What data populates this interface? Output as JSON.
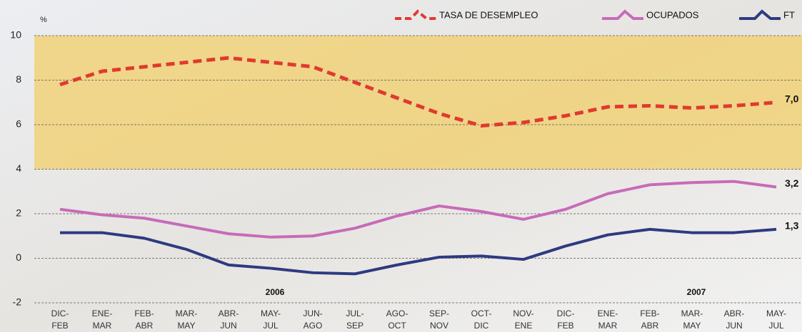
{
  "chart_data": {
    "type": "line",
    "y_label": "%",
    "categories": [
      "DIC-\nFEB",
      "ENE-\nMAR",
      "FEB-\nABR",
      "MAR-\nMAY",
      "ABR-\nJUN",
      "MAY-\nJUL",
      "JUN-\nAGO",
      "JUL-\nSEP",
      "AGO-\nOCT",
      "SEP-\nNOV",
      "OCT-\nDIC",
      "NOV-\nENE",
      "DIC-\nFEB",
      "ENE-\nMAR",
      "FEB-\nABR",
      "MAR-\nMAY",
      "ABR-\nJUN",
      "MAY-\nJUL"
    ],
    "series": [
      {
        "name": "TASA DE DESEMPLEO",
        "color": "#e03a2f",
        "dashed": true,
        "values": [
          7.8,
          8.4,
          8.6,
          8.8,
          9.0,
          8.8,
          8.6,
          7.9,
          7.2,
          6.5,
          5.95,
          6.1,
          6.4,
          6.8,
          6.85,
          6.75,
          6.85,
          7.0
        ],
        "value_labels": [
          null,
          null,
          null,
          null,
          null,
          null,
          null,
          null,
          null,
          null,
          null,
          null,
          null,
          null,
          null,
          null,
          null,
          "7,0"
        ]
      },
      {
        "name": "OCUPADOS",
        "color": "#c76bb8",
        "dashed": false,
        "values": [
          2.2,
          1.95,
          1.8,
          1.45,
          1.1,
          0.95,
          1.0,
          1.35,
          1.9,
          2.35,
          2.1,
          1.75,
          2.2,
          2.9,
          3.3,
          3.4,
          3.45,
          3.2
        ],
        "value_labels": [
          null,
          null,
          null,
          null,
          null,
          null,
          null,
          null,
          null,
          null,
          null,
          null,
          null,
          null,
          null,
          null,
          null,
          "3,2"
        ]
      },
      {
        "name": "FT",
        "color": "#2e3a80",
        "dashed": false,
        "values": [
          1.15,
          1.15,
          0.9,
          0.4,
          -0.3,
          -0.45,
          -0.65,
          -0.7,
          -0.3,
          0.05,
          0.1,
          -0.05,
          0.55,
          1.05,
          1.3,
          1.15,
          1.15,
          1.3
        ],
        "value_labels": [
          null,
          null,
          null,
          null,
          null,
          null,
          null,
          null,
          null,
          null,
          null,
          null,
          null,
          null,
          null,
          null,
          null,
          "1,3"
        ]
      }
    ],
    "annotations": [
      {
        "text": "2006",
        "category": 5
      },
      {
        "text": "2007",
        "category": 15
      }
    ],
    "highlight_band": {
      "from": 4,
      "to": 10,
      "color": "#f1cf6a"
    },
    "ylim": [
      -2,
      10
    ],
    "yticks": [
      -2,
      0,
      2,
      4,
      6,
      8,
      10
    ],
    "grid": true
  }
}
